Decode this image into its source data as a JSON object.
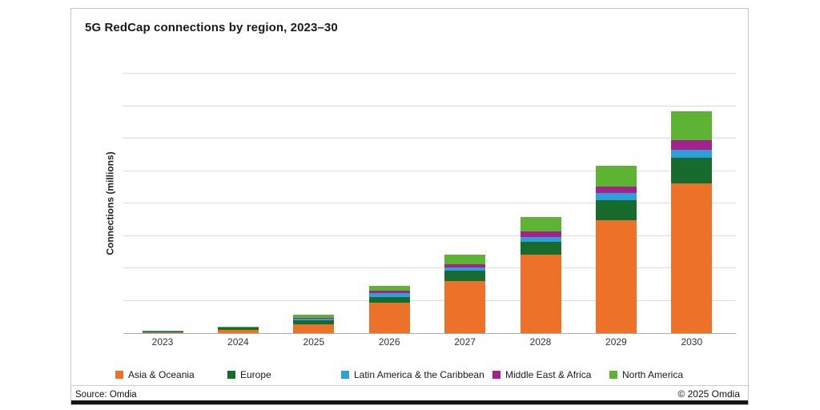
{
  "card": {
    "source": "Source: Omdia",
    "copyright": "© 2025 Omdia"
  },
  "chart_data": {
    "type": "bar",
    "stacked": true,
    "title": "5G RedCap connections by region, 2023–30",
    "xlabel": "",
    "ylabel": "Connections (millions)",
    "categories": [
      "2023",
      "2024",
      "2025",
      "2026",
      "2027",
      "2028",
      "2029",
      "2030"
    ],
    "series": [
      {
        "name": "Asia & Oceania",
        "color": "#ED7129",
        "values": [
          0.25,
          0.9,
          2.6,
          9.3,
          16.1,
          24.1,
          34.9,
          46.2
        ]
      },
      {
        "name": "Europe",
        "color": "#176B2C",
        "values": [
          0.35,
          0.75,
          1.4,
          1.9,
          3.1,
          4.1,
          6.0,
          7.8
        ]
      },
      {
        "name": "Latin America & the Caribbean",
        "color": "#2D9FD9",
        "values": [
          0.05,
          0.1,
          0.4,
          1.2,
          1.0,
          1.4,
          2.2,
          2.6
        ]
      },
      {
        "name": "Middle East & Africa",
        "color": "#A62190",
        "values": [
          0.05,
          0.1,
          0.25,
          0.75,
          1.1,
          1.7,
          2.2,
          2.9
        ]
      },
      {
        "name": "North America",
        "color": "#5CB432",
        "values": [
          0.1,
          0.25,
          1.1,
          1.5,
          2.9,
          4.5,
          6.4,
          9.0
        ]
      }
    ],
    "ylim": [
      0,
      80
    ],
    "gridline_interval": 10,
    "y_tick_labels": [],
    "axis_note": "y axis shows gridlines only (no numeric labels); values estimated in gridline units, 1 gridline = 10",
    "grid": true,
    "legend_position": "bottom"
  }
}
